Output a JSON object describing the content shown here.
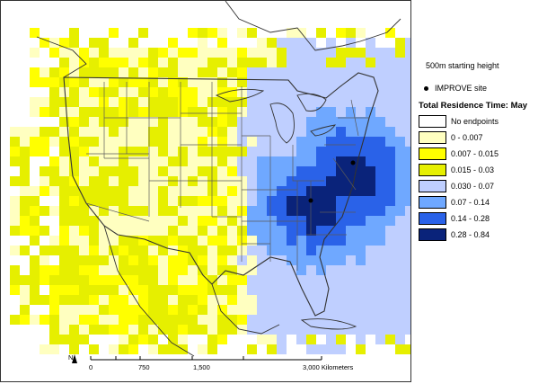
{
  "legend": {
    "height_note": "500m starting height",
    "site_label": "IMPROVE site",
    "title": "Total Residence Time: May",
    "items": [
      {
        "label": "No endpoints",
        "color": "#ffffff"
      },
      {
        "label": "0 - 0.007",
        "color": "#ffffc0"
      },
      {
        "label": "0.007 - 0.015",
        "color": "#ffff00"
      },
      {
        "label": "0.015 - 0.03",
        "color": "#e6ef00"
      },
      {
        "label": "0.030 - 0.07",
        "color": "#bfcfff"
      },
      {
        "label": "0.07 - 0.14",
        "color": "#6fa8ff"
      },
      {
        "label": "0.14 - 0.28",
        "color": "#2a62e8"
      },
      {
        "label": "0.28 - 0.84",
        "color": "#0a237a"
      }
    ]
  },
  "scalebar": {
    "north": "N",
    "ticks": [
      "0",
      "750",
      "1,500",
      "3,000 Kilometers"
    ]
  },
  "colors": {
    "map_border": "#333333",
    "state_lines": "#5a5a5a",
    "coast_lines": "#333333"
  }
}
